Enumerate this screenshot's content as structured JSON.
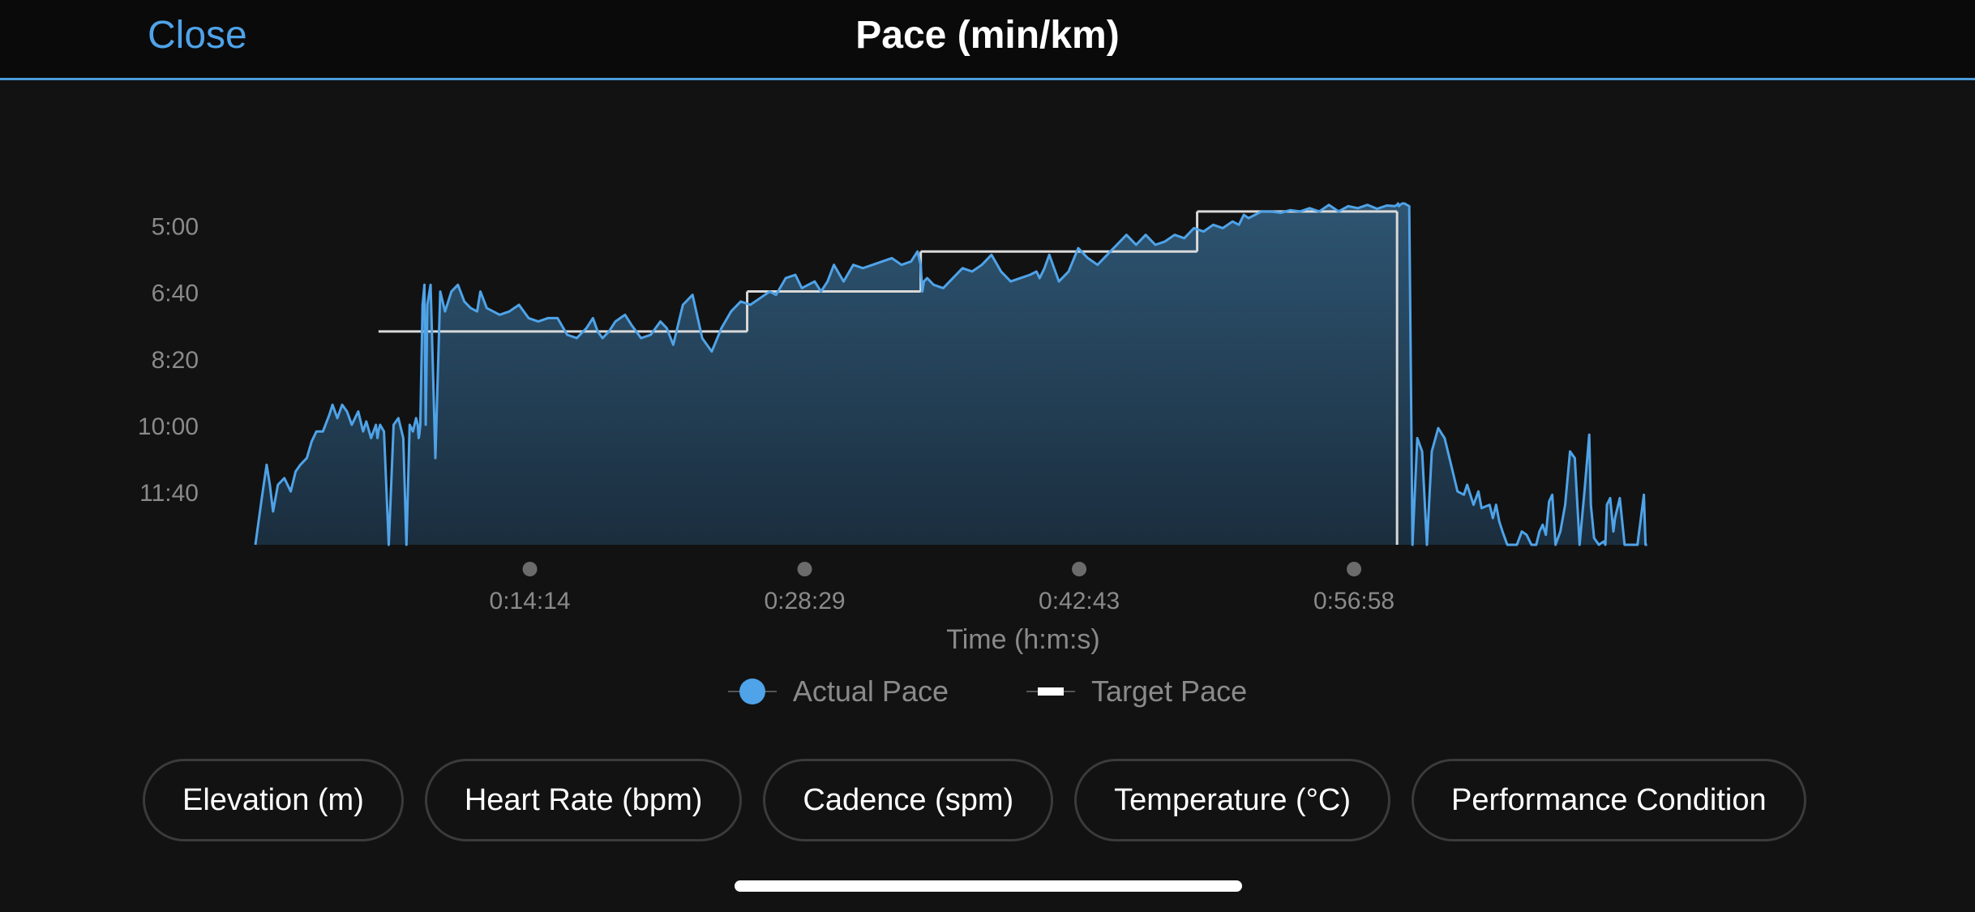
{
  "header": {
    "close_label": "Close",
    "title": "Pace (min/km)"
  },
  "chart_data": {
    "type": "area",
    "title": "Pace (min/km)",
    "xlabel": "Time (h:m:s)",
    "ylabel": "",
    "xlim": [
      0,
      4780
    ],
    "ylim": [
      780,
      240
    ],
    "y_inverted": true,
    "grid": false,
    "legend_position": "bottom-center",
    "x_ticks": [
      {
        "value": 854,
        "label": "0:14:14"
      },
      {
        "value": 1709,
        "label": "0:28:29"
      },
      {
        "value": 2563,
        "label": "0:42:43"
      },
      {
        "value": 3418,
        "label": "0:56:58"
      }
    ],
    "y_ticks": [
      {
        "value": 300,
        "label": "5:00"
      },
      {
        "value": 400,
        "label": "6:40"
      },
      {
        "value": 500,
        "label": "8:20"
      },
      {
        "value": 600,
        "label": "10:00"
      },
      {
        "value": 700,
        "label": "11:40"
      }
    ],
    "series": [
      {
        "name": "Actual Pace",
        "color": "#4fa3e8",
        "x": [
          0,
          20,
          35,
          45,
          55,
          70,
          90,
          110,
          125,
          140,
          160,
          175,
          190,
          210,
          230,
          240,
          255,
          270,
          285,
          300,
          320,
          335,
          345,
          360,
          375,
          380,
          383,
          388,
          400,
          415,
          430,
          445,
          460,
          470,
          480,
          490,
          500,
          505,
          508,
          510,
          513,
          520,
          526,
          530,
          535,
          545,
          560,
          575,
          590,
          610,
          630,
          650,
          670,
          690,
          700,
          720,
          740,
          760,
          790,
          820,
          850,
          880,
          910,
          940,
          970,
          1000,
          1030,
          1050,
          1065,
          1080,
          1100,
          1120,
          1150,
          1170,
          1200,
          1230,
          1260,
          1280,
          1300,
          1330,
          1360,
          1390,
          1420,
          1450,
          1480,
          1510,
          1540,
          1570,
          1600,
          1620,
          1650,
          1680,
          1700,
          1720,
          1740,
          1760,
          1780,
          1800,
          1830,
          1860,
          1890,
          1920,
          1950,
          1980,
          2010,
          2040,
          2060,
          2070,
          2075,
          2080,
          2090,
          2110,
          2140,
          2170,
          2200,
          2230,
          2260,
          2290,
          2320,
          2350,
          2380,
          2410,
          2430,
          2440,
          2455,
          2470,
          2500,
          2530,
          2560,
          2590,
          2620,
          2650,
          2680,
          2710,
          2740,
          2770,
          2800,
          2830,
          2860,
          2890,
          2920,
          2950,
          2980,
          3010,
          3040,
          3060,
          3075,
          3090,
          3110,
          3130,
          3160,
          3190,
          3220,
          3250,
          3280,
          3310,
          3340,
          3370,
          3400,
          3430,
          3460,
          3490,
          3520,
          3545,
          3552,
          3555,
          3558,
          3562,
          3568,
          3575,
          3582,
          3590,
          3600,
          3615,
          3630,
          3645,
          3660,
          3680,
          3700,
          3720,
          3740,
          3760,
          3770,
          3790,
          3805,
          3815,
          3840,
          3850,
          3860,
          3870,
          3880,
          3895,
          3910,
          3925,
          3940,
          3955,
          3970,
          3985,
          3995,
          4005,
          4015,
          4025,
          4035,
          4045,
          4060,
          4075,
          4090,
          4105,
          4120,
          4135,
          4150,
          4155,
          4165,
          4180,
          4195,
          4200,
          4205,
          4215,
          4225,
          4230,
          4245,
          4260,
          4275,
          4290,
          4300,
          4320,
          4325,
          4330
        ],
        "y": [
          780,
          710,
          660,
          690,
          730,
          690,
          680,
          700,
          670,
          660,
          650,
          625,
          610,
          610,
          585,
          570,
          590,
          570,
          580,
          600,
          580,
          610,
          595,
          620,
          600,
          620,
          610,
          600,
          610,
          780,
          600,
          590,
          620,
          780,
          600,
          610,
          590,
          600,
          620,
          615,
          600,
          420,
          390,
          600,
          420,
          390,
          650,
          400,
          430,
          400,
          390,
          415,
          425,
          430,
          400,
          425,
          430,
          435,
          430,
          420,
          440,
          445,
          440,
          440,
          465,
          470,
          455,
          440,
          460,
          470,
          460,
          445,
          435,
          450,
          470,
          465,
          445,
          455,
          480,
          420,
          405,
          470,
          490,
          455,
          430,
          415,
          420,
          410,
          400,
          405,
          380,
          375,
          395,
          390,
          385,
          400,
          385,
          360,
          385,
          360,
          365,
          360,
          355,
          350,
          360,
          355,
          340,
          360,
          400,
          385,
          380,
          390,
          395,
          380,
          365,
          370,
          360,
          345,
          370,
          385,
          380,
          375,
          370,
          380,
          365,
          345,
          385,
          370,
          335,
          350,
          360,
          345,
          330,
          315,
          330,
          315,
          330,
          325,
          315,
          320,
          305,
          310,
          300,
          305,
          295,
          300,
          285,
          290,
          285,
          280,
          280,
          282,
          278,
          280,
          275,
          280,
          270,
          280,
          272,
          275,
          270,
          276,
          271,
          272,
          270,
          268,
          272,
          270,
          268,
          268,
          270,
          272,
          780,
          620,
          640,
          780,
          640,
          605,
          620,
          660,
          700,
          705,
          690,
          720,
          700,
          725,
          720,
          740,
          720,
          745,
          760,
          780,
          780,
          780,
          760,
          765,
          780,
          780,
          760,
          750,
          765,
          715,
          705,
          780,
          760,
          720,
          640,
          650,
          780,
          700,
          615,
          720,
          770,
          780,
          775,
          780,
          720,
          710,
          760,
          740,
          710,
          780,
          780,
          780,
          780,
          705,
          780,
          780
        ]
      },
      {
        "name": "Target Pace",
        "color": "#d9d9d9",
        "steps": [
          {
            "x0": 383,
            "x1": 965,
            "y": 460
          },
          {
            "x0": 965,
            "x1": 1530,
            "y": 460
          },
          {
            "x0": 1530,
            "x1": 2070,
            "y": 400
          },
          {
            "x0": 2070,
            "x1": 2930,
            "y": 340
          },
          {
            "x0": 2930,
            "x1": 3552,
            "y": 280
          }
        ]
      }
    ]
  },
  "legend": {
    "actual_label": "Actual Pace",
    "target_label": "Target Pace"
  },
  "metric_pills": [
    "Elevation (m)",
    "Heart Rate (bpm)",
    "Cadence (spm)",
    "Temperature (°C)",
    "Performance Condition"
  ]
}
